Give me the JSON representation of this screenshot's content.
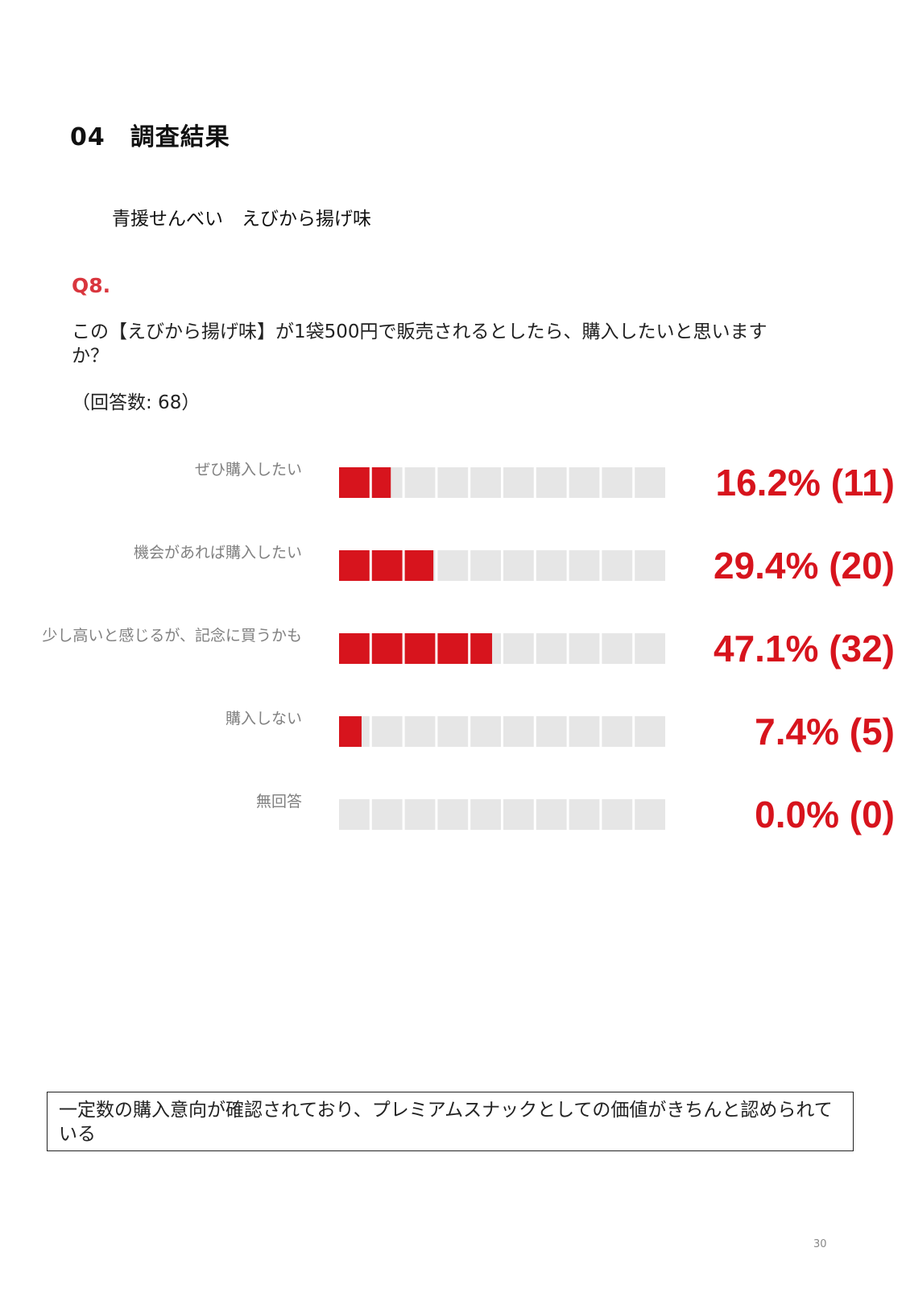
{
  "header": {
    "section_title": "04　調査結果",
    "subtitle": "青援せんべい　えびから揚げ味"
  },
  "question": {
    "number": "Q8.",
    "text": "この【えびから揚げ味】が1袋500円で販売されるとしたら、購入したいと思いますか？",
    "respondents": "（回答数: 68）"
  },
  "colors": {
    "bar_fill": "#d7141d",
    "bar_empty": "#e6e6e6",
    "value_text": "#d7141d",
    "question_number": "#d9363e"
  },
  "chart_data": {
    "type": "bar",
    "orientation": "horizontal",
    "scale_max_percent": 100,
    "segments": 10,
    "categories": [
      "ぜひ購入したい",
      "機会があれば購入したい",
      "少し高いと感じるが、記念に買うかも",
      "購入しない",
      "無回答"
    ],
    "values": [
      16.2,
      29.4,
      47.1,
      7.4,
      0.0
    ],
    "counts": [
      11,
      20,
      32,
      5,
      0
    ],
    "value_labels": [
      "16.2% (11)",
      "29.4% (20)",
      "47.1% (32)",
      "7.4% (5)",
      "0.0% (0)"
    ]
  },
  "summary": {
    "text": "一定数の購入意向が確認されており、プレミアムスナックとしての価値がきちんと認められている"
  },
  "page_number": "30"
}
